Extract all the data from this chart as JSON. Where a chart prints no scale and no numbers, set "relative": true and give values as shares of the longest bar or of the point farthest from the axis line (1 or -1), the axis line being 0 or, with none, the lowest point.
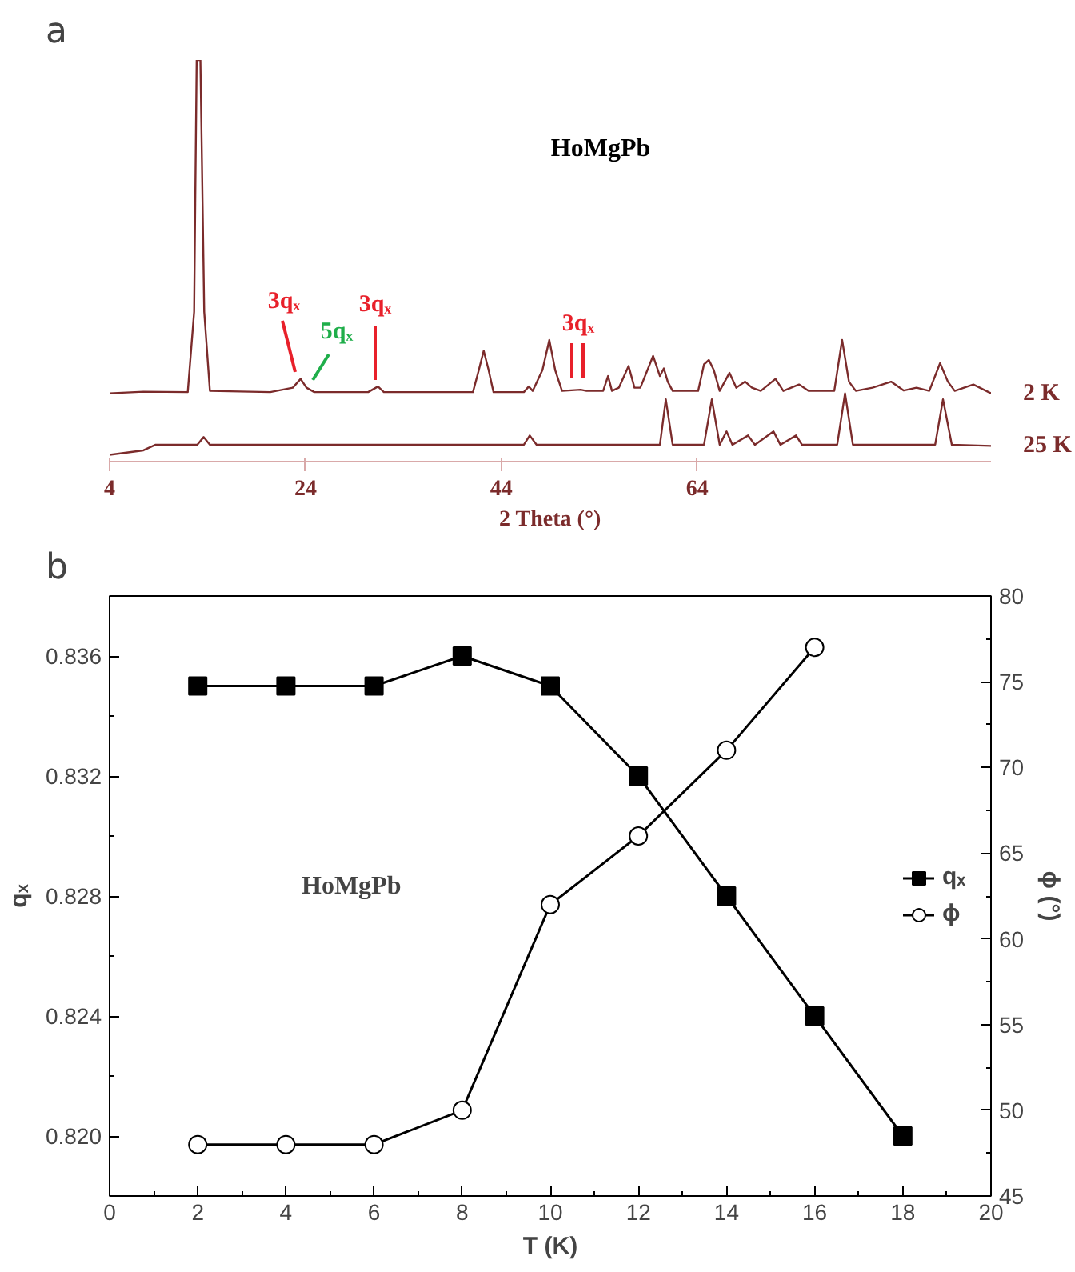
{
  "chart_data": [
    {
      "type": "line",
      "title": "a",
      "xlabel": "2 Theta (°)",
      "relative": true,
      "xlim": [
        4,
        94
      ],
      "xticks": [
        4,
        24,
        44,
        64
      ],
      "grid": false,
      "annotations": [
        "HoMgPb",
        "3qₓ",
        "5qₓ",
        "3qₓ",
        "3qₓ"
      ],
      "series": [
        {
          "name": "2 K",
          "color": "#7b2b2b",
          "x": [
            4.0,
            7.45,
            11.98,
            12.63,
            12.89,
            13.27,
            13.66,
            14.24,
            20.4,
            22.7,
            23.5,
            24.1,
            24.9,
            30.4,
            31.4,
            32.0,
            41.1,
            41.7,
            42.2,
            42.7,
            43.2,
            46.3,
            46.8,
            47.2,
            48.2,
            48.9,
            49.5,
            50.2,
            52.1,
            52.7,
            54.4,
            54.9,
            55.3,
            56.0,
            57.0,
            57.6,
            58.2,
            59.5,
            60.2,
            60.6,
            61.0,
            61.5,
            64.1,
            64.7,
            65.2,
            65.7,
            66.3,
            67.3,
            68.0,
            68.9,
            69.6,
            70.5,
            72.0,
            72.8,
            74.4,
            75.4,
            78.0,
            78.8,
            79.5,
            80.2,
            81.9,
            83.8,
            85.1,
            86.4,
            87.7,
            88.8,
            89.6,
            90.3,
            92.2,
            94.0
          ],
          "values": [
            0.17,
            0.174,
            0.173,
            0.373,
            1,
            1,
            0.373,
            0.176,
            0.173,
            0.184,
            0.206,
            0.184,
            0.173,
            0.173,
            0.187,
            0.173,
            0.173,
            0.228,
            0.276,
            0.228,
            0.173,
            0.173,
            0.187,
            0.176,
            0.228,
            0.303,
            0.228,
            0.176,
            0.179,
            0.176,
            0.176,
            0.213,
            0.176,
            0.184,
            0.238,
            0.184,
            0.184,
            0.263,
            0.213,
            0.232,
            0.199,
            0.176,
            0.176,
            0.242,
            0.253,
            0.228,
            0.176,
            0.221,
            0.184,
            0.199,
            0.184,
            0.176,
            0.206,
            0.176,
            0.192,
            0.176,
            0.176,
            0.303,
            0.199,
            0.176,
            0.184,
            0.199,
            0.177,
            0.184,
            0.176,
            0.245,
            0.199,
            0.176,
            0.192,
            0.17
          ]
        },
        {
          "name": "25 K",
          "color": "#7b2b2b",
          "x": [
            4.0,
            7.45,
            8.7,
            12.95,
            13.6,
            14.24,
            46.3,
            46.9,
            47.6,
            60.2,
            60.8,
            61.5,
            64.7,
            65.5,
            66.3,
            67.0,
            67.6,
            69.2,
            69.9,
            71.8,
            72.5,
            74.1,
            74.7,
            78.3,
            79.1,
            79.9,
            88.3,
            89.1,
            90.0,
            94.0
          ],
          "values": [
            0.017,
            0.028,
            0.042,
            0.042,
            0.061,
            0.042,
            0.042,
            0.065,
            0.042,
            0.042,
            0.155,
            0.042,
            0.042,
            0.155,
            0.042,
            0.075,
            0.042,
            0.065,
            0.042,
            0.075,
            0.042,
            0.065,
            0.042,
            0.042,
            0.17,
            0.042,
            0.042,
            0.155,
            0.042,
            0.039
          ]
        }
      ]
    },
    {
      "type": "line",
      "title": "b",
      "xlabel": "T (K)",
      "ylabel": "qₓ",
      "y2label": "ϕ (°)",
      "xlim": [
        0,
        20
      ],
      "xticks": [
        0,
        2,
        4,
        6,
        8,
        10,
        12,
        14,
        16,
        18,
        20
      ],
      "ylim": [
        0.818,
        0.838
      ],
      "yticks": [
        {
          "value": 0.82,
          "label": "0.820"
        },
        0.824,
        0.828,
        0.832,
        0.836
      ],
      "y2lim": [
        45,
        80
      ],
      "y2ticks": [
        45,
        50,
        55,
        60,
        65,
        70,
        75,
        80
      ],
      "grid": false,
      "legend": "right",
      "annotations": [
        "HoMgPb"
      ],
      "series": [
        {
          "name": "qₓ",
          "color": "#000000",
          "marker": "square",
          "x": [
            2,
            4,
            6,
            8,
            10,
            12,
            14,
            16,
            18
          ],
          "values": [
            0.835,
            0.835,
            0.835,
            0.836,
            0.835,
            0.832,
            0.828,
            0.824,
            0.82
          ]
        },
        {
          "name": "ϕ",
          "color": "#000000",
          "marker": "circle",
          "axis": "y2",
          "x": [
            2,
            4,
            6,
            8,
            10,
            12,
            14,
            16
          ],
          "values": [
            48,
            48,
            48,
            50,
            62,
            66,
            71,
            77
          ]
        }
      ]
    }
  ]
}
